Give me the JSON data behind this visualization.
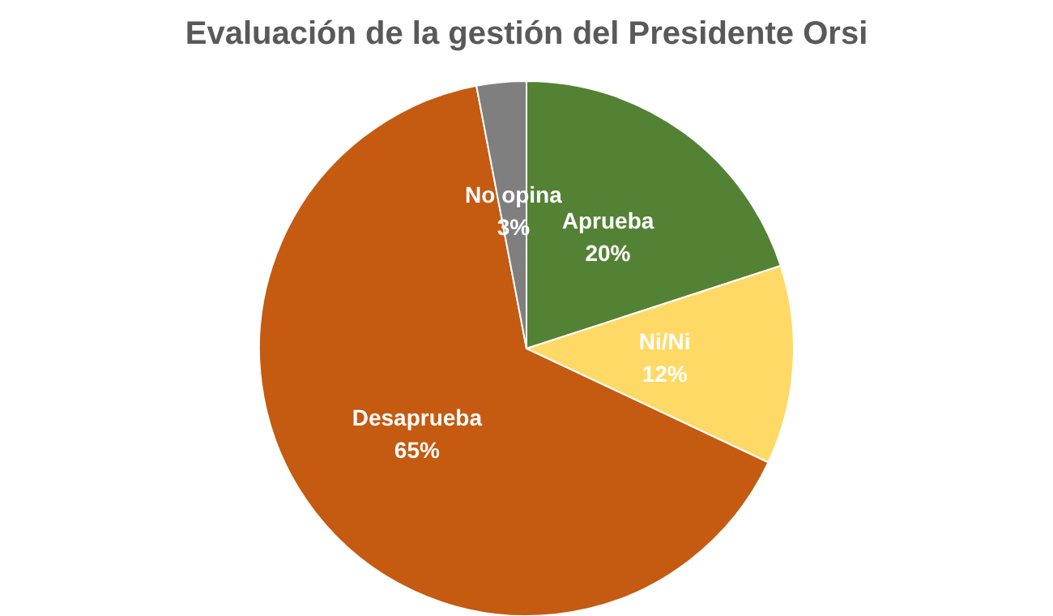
{
  "chart_data": {
    "type": "pie",
    "title": "Evaluación de la gestión del Presidente Orsi",
    "categories": [
      "Aprueba",
      "Ni/Ni",
      "Desaprueba",
      "No opina"
    ],
    "values": [
      20,
      12,
      65,
      3
    ],
    "value_labels": [
      "20%",
      "12%",
      "65%",
      "3%"
    ],
    "colors": [
      "#548235",
      "#ffd966",
      "#c55a11",
      "#7f7f7f"
    ],
    "legend": false
  }
}
